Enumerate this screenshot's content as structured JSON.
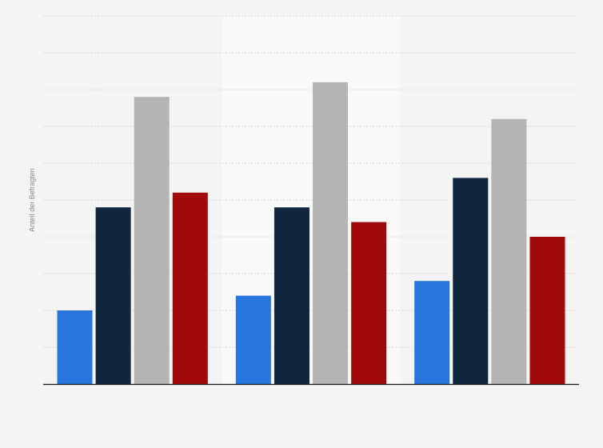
{
  "chart_data": {
    "type": "bar",
    "title": "",
    "xlabel": "",
    "ylabel": "Anteil der Befragten",
    "categories": [
      "",
      "",
      ""
    ],
    "series": [
      {
        "color": "#2876dd",
        "values": [
          2.0,
          2.4,
          2.8
        ]
      },
      {
        "color": "#10263e",
        "values": [
          4.8,
          4.8,
          5.6
        ]
      },
      {
        "color": "#b5b5b5",
        "values": [
          7.8,
          8.2,
          7.2
        ]
      },
      {
        "color": "#a10a0a",
        "values": [
          5.2,
          4.4,
          4.0
        ]
      }
    ],
    "ylim": [
      0,
      10
    ],
    "grid": true,
    "legend": "none",
    "highlighted_category_index": 1
  }
}
